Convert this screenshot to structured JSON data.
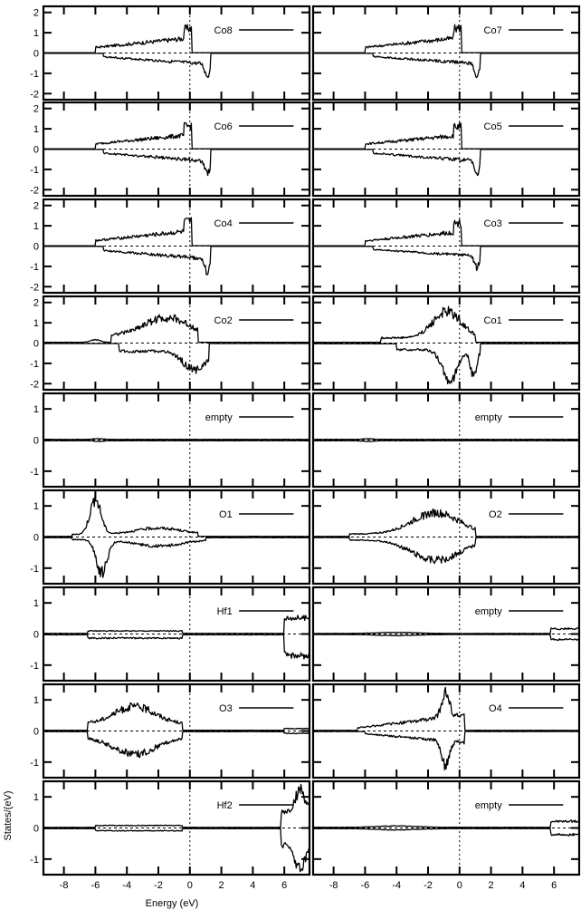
{
  "chart_data": {
    "type": "line",
    "xlabel": "Energy (eV)",
    "ylabel": "States/(eV)",
    "xlim": [
      -9.3,
      7.6
    ],
    "x_ticks": [
      -8,
      -6,
      -4,
      -2,
      0,
      2,
      4,
      6
    ],
    "grid": false,
    "fermi_level": 0,
    "panels": [
      {
        "label": "Co8",
        "ylim": [
          -2.3,
          2.3
        ],
        "y_ticks": [
          -2,
          -1,
          0,
          1,
          2
        ],
        "shape": "co",
        "up": 1.4,
        "down": 1.2,
        "amp": 1.0
      },
      {
        "label": "Co7",
        "ylim": [
          -2.3,
          2.3
        ],
        "y_ticks": [
          -2,
          -1,
          0,
          1,
          2
        ],
        "shape": "co",
        "up": 1.4,
        "down": 1.2,
        "amp": 1.0
      },
      {
        "label": "Co6",
        "ylim": [
          -2.3,
          2.3
        ],
        "y_ticks": [
          -2,
          -1,
          0,
          1,
          2
        ],
        "shape": "co",
        "up": 1.3,
        "down": 1.3,
        "amp": 1.0
      },
      {
        "label": "Co5",
        "ylim": [
          -2.3,
          2.3
        ],
        "y_ticks": [
          -2,
          -1,
          0,
          1,
          2
        ],
        "shape": "co",
        "up": 1.3,
        "down": 1.3,
        "amp": 1.0
      },
      {
        "label": "Co4",
        "ylim": [
          -2.3,
          2.3
        ],
        "y_ticks": [
          -2,
          -1,
          0,
          1,
          2
        ],
        "shape": "co",
        "up": 1.4,
        "down": 1.4,
        "amp": 1.0
      },
      {
        "label": "Co3",
        "ylim": [
          -2.3,
          2.3
        ],
        "y_ticks": [
          -2,
          -1,
          0,
          1,
          2
        ],
        "shape": "co",
        "up": 1.3,
        "down": 1.2,
        "amp": 1.0
      },
      {
        "label": "Co2",
        "ylim": [
          -2.3,
          2.3
        ],
        "y_ticks": [
          -2,
          -1,
          0,
          1,
          2
        ],
        "shape": "co2",
        "up": 1.4,
        "down": 1.5,
        "amp": 1.0
      },
      {
        "label": "Co1",
        "ylim": [
          -2.3,
          2.3
        ],
        "y_ticks": [
          -2,
          -1,
          0,
          1,
          2
        ],
        "shape": "co1",
        "up": 1.8,
        "down": 2.0,
        "amp": 1.0
      },
      {
        "label": "empty",
        "ylim": [
          -1.5,
          1.5
        ],
        "y_ticks": [
          -1,
          0,
          1
        ],
        "shape": "empty",
        "up": 0.05,
        "down": 0.05,
        "amp": 1.0
      },
      {
        "label": "empty",
        "ylim": [
          -1.5,
          1.5
        ],
        "y_ticks": [
          -1,
          0,
          1
        ],
        "shape": "empty",
        "up": 0.05,
        "down": 0.05,
        "amp": 1.0
      },
      {
        "label": "O1",
        "ylim": [
          -1.5,
          1.5
        ],
        "y_ticks": [
          -1,
          0,
          1
        ],
        "shape": "o1",
        "up": 1.4,
        "down": 1.3,
        "amp": 1.0
      },
      {
        "label": "O2",
        "ylim": [
          -1.5,
          1.5
        ],
        "y_ticks": [
          -1,
          0,
          1
        ],
        "shape": "o2",
        "up": 0.9,
        "down": 0.85,
        "amp": 1.0
      },
      {
        "label": "Hf1",
        "ylim": [
          -1.5,
          1.5
        ],
        "y_ticks": [
          -1,
          0,
          1
        ],
        "shape": "hf",
        "up": 0.6,
        "down": 0.8,
        "amp": 1.0
      },
      {
        "label": "empty",
        "ylim": [
          -1.5,
          1.5
        ],
        "y_ticks": [
          -1,
          0,
          1
        ],
        "shape": "empty_hf",
        "up": 0.2,
        "down": 0.2,
        "amp": 1.0
      },
      {
        "label": "O3",
        "ylim": [
          -1.5,
          1.5
        ],
        "y_ticks": [
          -1,
          0,
          1
        ],
        "shape": "o3",
        "up": 0.9,
        "down": 0.85,
        "amp": 1.0
      },
      {
        "label": "O4",
        "ylim": [
          -1.5,
          1.5
        ],
        "y_ticks": [
          -1,
          0,
          1
        ],
        "shape": "o4",
        "up": 1.4,
        "down": 1.25,
        "amp": 1.0
      },
      {
        "label": "Hf2",
        "ylim": [
          -1.5,
          1.5
        ],
        "y_ticks": [
          -1,
          0,
          1
        ],
        "shape": "hf2",
        "up": 1.4,
        "down": 1.4,
        "amp": 1.0
      },
      {
        "label": "empty",
        "ylim": [
          -1.5,
          1.5
        ],
        "y_ticks": [
          -1,
          0,
          1
        ],
        "shape": "empty_hf",
        "up": 0.25,
        "down": 0.25,
        "amp": 1.0
      }
    ]
  }
}
